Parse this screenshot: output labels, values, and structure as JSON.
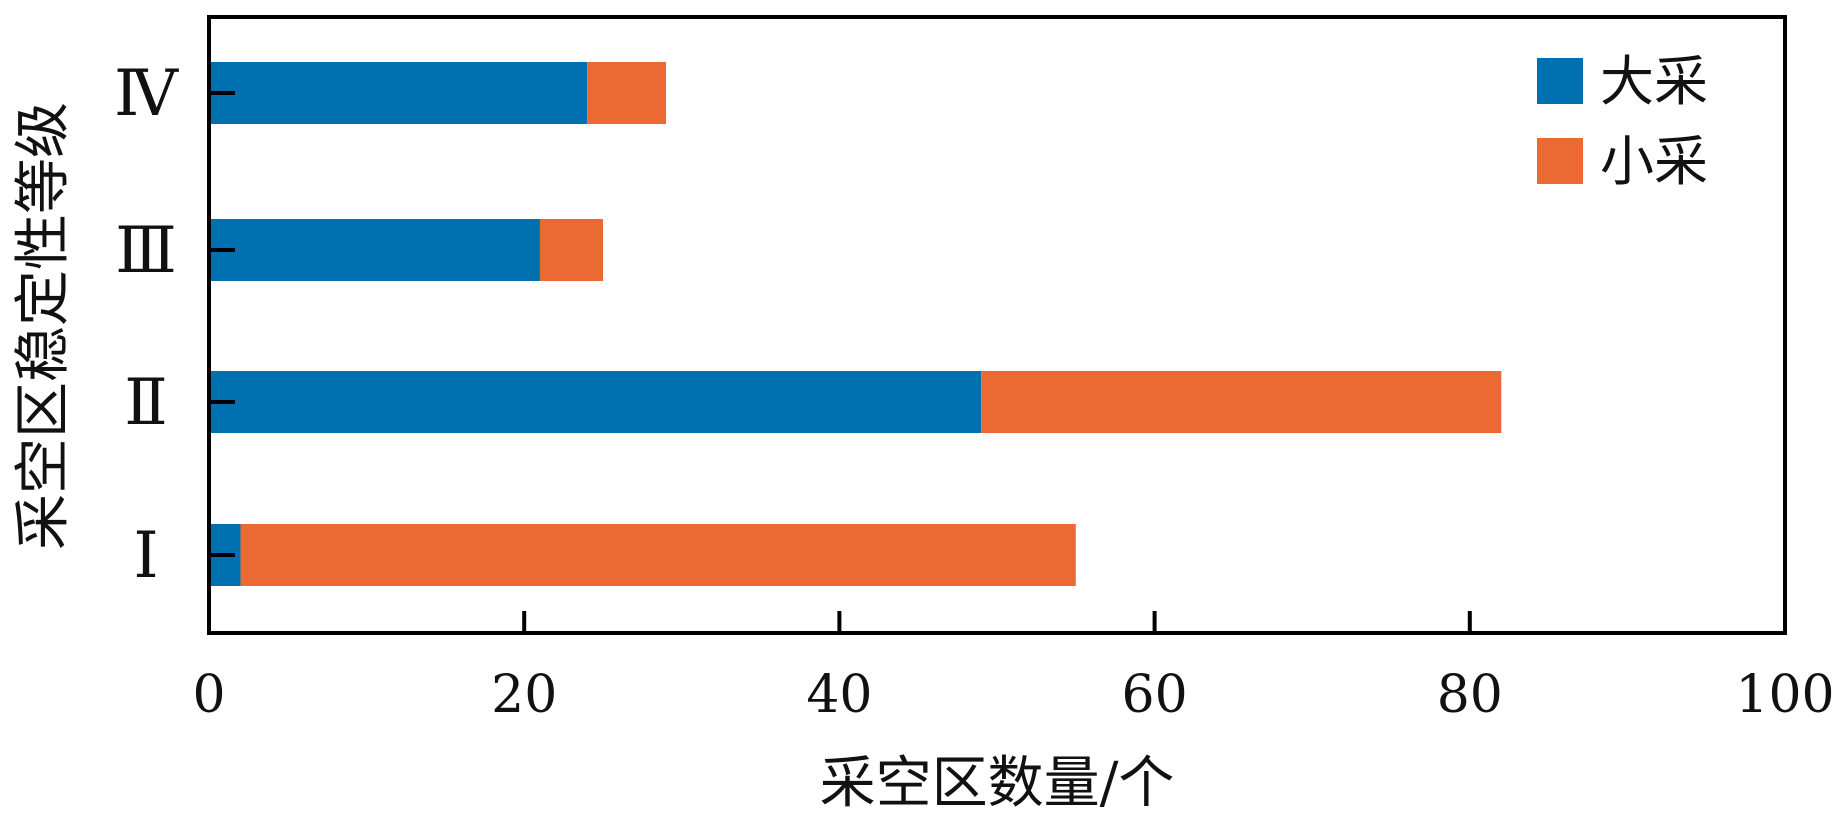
{
  "chart_data": {
    "type": "bar",
    "orientation": "horizontal",
    "stacked": true,
    "categories": [
      "Ⅰ",
      "Ⅱ",
      "Ⅲ",
      "Ⅳ"
    ],
    "series": [
      {
        "name": "大采",
        "values": [
          2,
          49,
          21,
          24
        ],
        "color": "#0070B0"
      },
      {
        "name": "小采",
        "values": [
          53,
          33,
          4,
          5
        ],
        "color": "#EB6A34"
      }
    ],
    "xlabel": "采空区数量/个",
    "ylabel": "采空区稳定性等级",
    "xlim": [
      0,
      100
    ],
    "xticks": [
      0,
      20,
      40,
      60,
      80,
      100
    ],
    "grid": false,
    "legend": "top-right"
  }
}
